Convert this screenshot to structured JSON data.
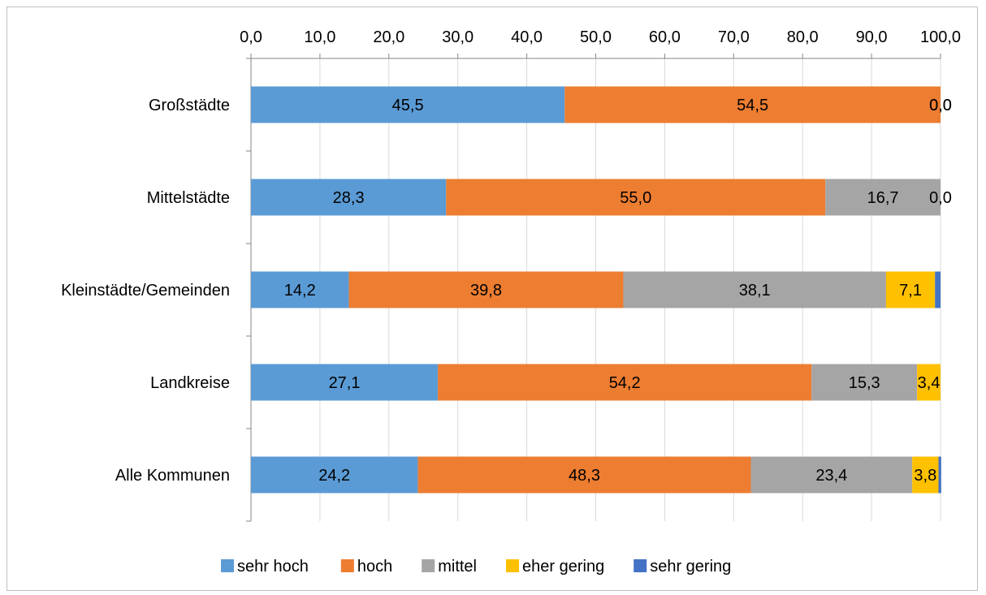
{
  "chart_data": {
    "type": "bar",
    "orientation": "horizontal",
    "stacked": true,
    "x_axis_position": "top",
    "xlim": [
      0,
      100
    ],
    "x_ticks": [
      "0,0",
      "10,0",
      "20,0",
      "30,0",
      "40,0",
      "50,0",
      "60,0",
      "70,0",
      "80,0",
      "90,0",
      "100,0"
    ],
    "categories": [
      "Großstädte",
      "Mittelstädte",
      "Kleinstädte/Gemeinden",
      "Landkreise",
      "Alle Kommunen"
    ],
    "series": [
      {
        "name": "sehr hoch",
        "color": "#5b9bd5",
        "values": [
          45.5,
          28.3,
          14.2,
          27.1,
          24.2
        ],
        "labels": [
          "45,5",
          "28,3",
          "14,2",
          "27,1",
          "24,2"
        ]
      },
      {
        "name": "hoch",
        "color": "#ed7d31",
        "values": [
          54.5,
          55.0,
          39.8,
          54.2,
          48.3
        ],
        "labels": [
          "54,5",
          "55,0",
          "39,8",
          "54,2",
          "48,3"
        ]
      },
      {
        "name": "mittel",
        "color": "#a5a5a5",
        "values": [
          0.0,
          16.7,
          38.1,
          15.3,
          23.4
        ],
        "labels": [
          "0,0",
          "16,7",
          "38,1",
          "15,3",
          "23,4"
        ]
      },
      {
        "name": "eher gering",
        "color": "#ffc000",
        "values": [
          0.0,
          0.0,
          7.1,
          3.4,
          3.8
        ],
        "labels": [
          "0,0",
          "0,0",
          "7,1",
          "3,4",
          "3,8"
        ]
      },
      {
        "name": "sehr gering",
        "color": "#4472c4",
        "values": [
          0.0,
          0.0,
          0.8,
          0.0,
          0.4
        ],
        "labels": [
          "",
          "",
          "",
          "",
          ""
        ]
      }
    ],
    "gridlines": "vertical",
    "legend_position": "bottom"
  }
}
